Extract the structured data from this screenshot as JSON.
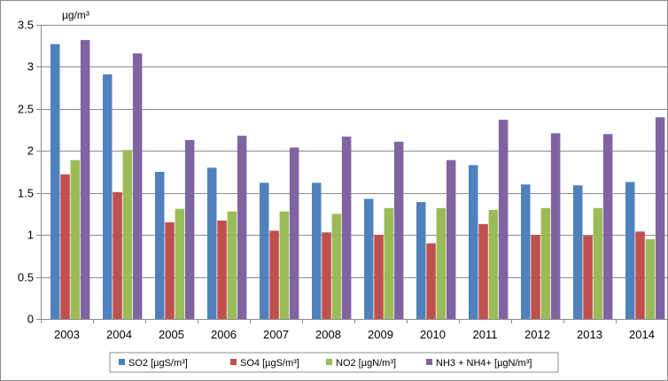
{
  "chart_data": {
    "type": "bar",
    "title": "",
    "xlabel": "",
    "ylabel": "",
    "unit_label": "µg/m³",
    "ylim": [
      0,
      3.5
    ],
    "yticks": [
      0,
      0.5,
      1,
      1.5,
      2,
      2.5,
      3,
      3.5
    ],
    "ytick_labels": [
      "0",
      "0.5",
      "1",
      "1.5",
      "2",
      "2.5",
      "3",
      "3.5"
    ],
    "grid": true,
    "legend_position": "bottom",
    "categories": [
      "2003",
      "2004",
      "2005",
      "2006",
      "2007",
      "2008",
      "2009",
      "2010",
      "2011",
      "2012",
      "2013",
      "2014"
    ],
    "series": [
      {
        "name": "SO2 [µgS/m³]",
        "color": "#4f81bd",
        "values": [
          3.27,
          2.91,
          1.75,
          1.8,
          1.62,
          1.62,
          1.43,
          1.39,
          1.83,
          1.6,
          1.59,
          1.63
        ]
      },
      {
        "name": "SO4 [µgS/m³]",
        "color": "#c0504d",
        "values": [
          1.72,
          1.51,
          1.15,
          1.17,
          1.05,
          1.03,
          1.0,
          0.9,
          1.13,
          1.0,
          0.99,
          1.04
        ]
      },
      {
        "name": "NO2 [µgN/m³]",
        "color": "#9bbb59",
        "values": [
          1.89,
          2.01,
          1.31,
          1.28,
          1.28,
          1.25,
          1.32,
          1.32,
          1.3,
          1.32,
          1.32,
          0.95
        ]
      },
      {
        "name": "NH3 + NH4+ [µgN/m³]",
        "color": "#8064a2",
        "values": [
          3.32,
          3.16,
          2.13,
          2.18,
          2.04,
          2.17,
          2.11,
          1.89,
          2.37,
          2.21,
          2.2,
          2.4
        ]
      }
    ]
  }
}
